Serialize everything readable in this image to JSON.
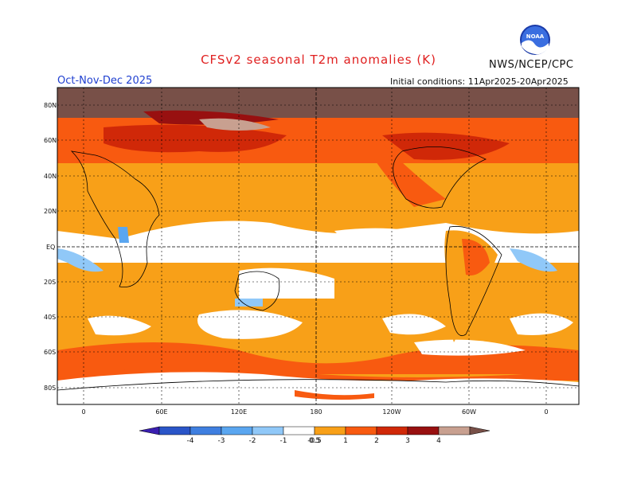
{
  "header": {
    "title": "CFSv2 seasonal T2m anomalies (K)",
    "organization": "NWS/NCEP/CPC",
    "season": "Oct-Nov-Dec 2025",
    "initial_conditions": "Initial conditions: 11Apr2025-20Apr2025",
    "logo_text": "NOAA"
  },
  "map": {
    "lat_labels": [
      "80N",
      "60N",
      "40N",
      "20N",
      "EQ",
      "20S",
      "40S",
      "60S",
      "80S"
    ],
    "lon_labels": [
      "0",
      "60E",
      "120E",
      "180",
      "120W",
      "60W",
      "0"
    ]
  },
  "colorbar": {
    "tick_labels": [
      "-4",
      "-3",
      "-2",
      "-1",
      "-0.5",
      "0.5",
      "1",
      "2",
      "3",
      "4"
    ],
    "colors": [
      "#3a1fb0",
      "#2a55c8",
      "#3f7fe0",
      "#5aa6f0",
      "#90c8f8",
      "#ffffff",
      "#f8a018",
      "#f85a10",
      "#d02808",
      "#981010",
      "#c8a090",
      "#785048"
    ]
  }
}
